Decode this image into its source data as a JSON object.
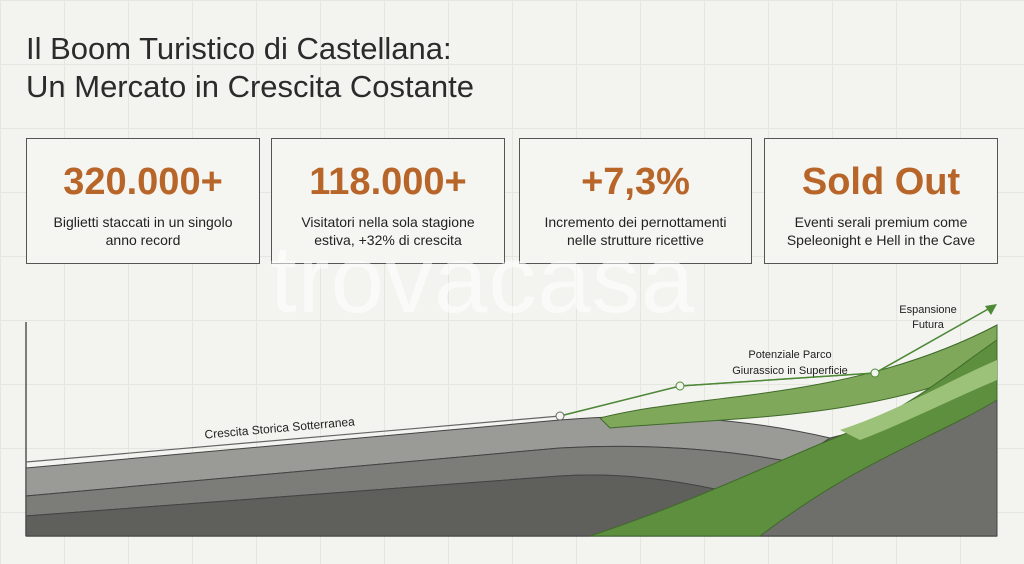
{
  "header": {
    "title_lines": [
      "Il Boom Turistico di Castellana:",
      "Un Mercato in Crescita Costante"
    ]
  },
  "stats": [
    {
      "value": "320.000+",
      "caption_lines": [
        "Biglietti staccati in un singolo",
        "anno record"
      ]
    },
    {
      "value": "118.000+",
      "caption_lines": [
        "Visitatori nella sola stagione",
        "estiva, +32% di crescita"
      ]
    },
    {
      "value": "+7,3%",
      "caption_lines": [
        "Incremento dei pernottamenti",
        "nelle strutture ricettive"
      ]
    },
    {
      "value": "Sold Out",
      "caption_lines": [
        "Eventi serali premium come",
        "Speleonight e Hell in the Cave"
      ]
    }
  ],
  "illustration": {
    "historic_label": "Crescita Storica Sotterranea",
    "park_label_lines": [
      "Potenziale Parco",
      "Giurassico in Superficie"
    ],
    "future_label_lines": [
      "Espansione",
      "Futura"
    ]
  },
  "watermark": "trovacasa"
}
